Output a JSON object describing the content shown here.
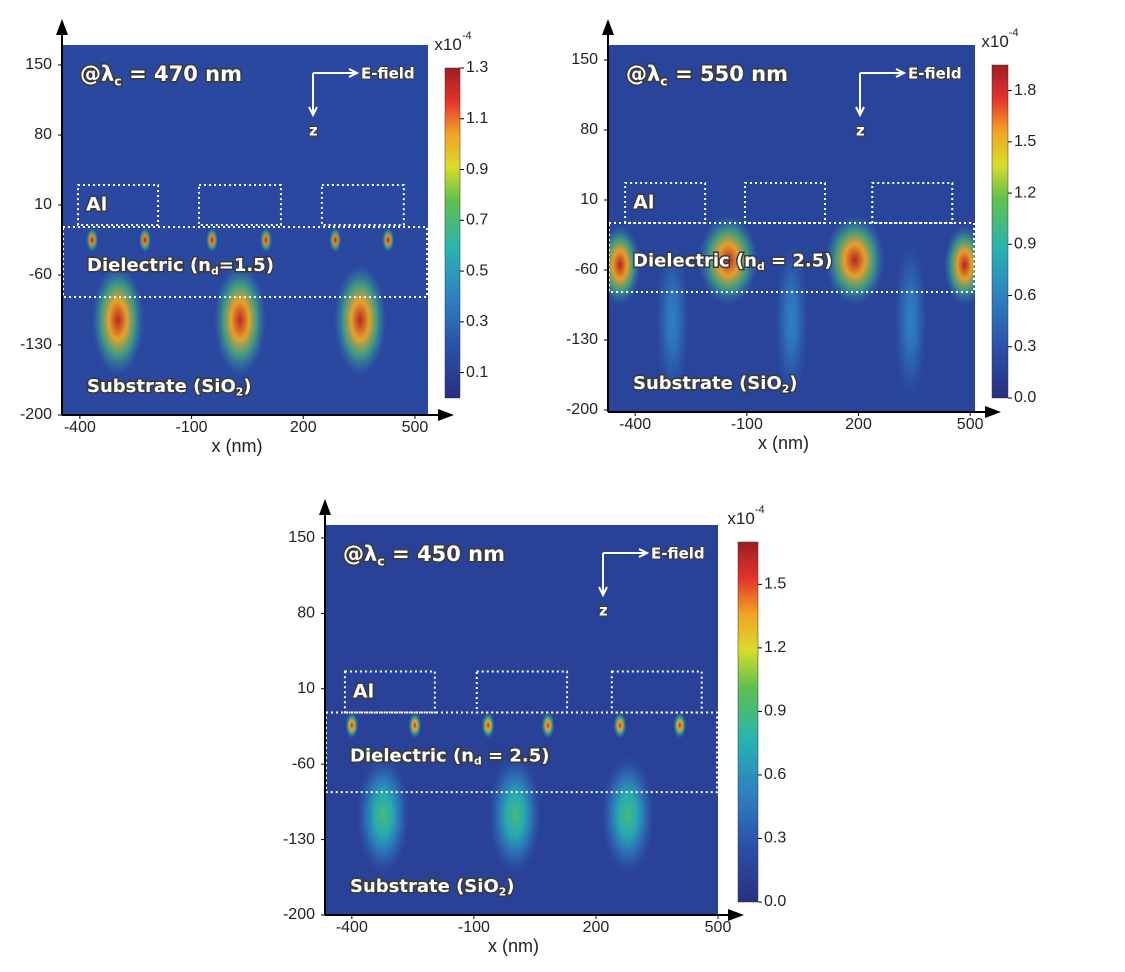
{
  "chart_data": [
    {
      "type": "heatmap",
      "title": {
        "text": "@λ",
        "sub": "c",
        "tail": " = 470 nm"
      },
      "xlabel": "x (nm)",
      "field_label": "E-field",
      "z_label": "z",
      "metal_label": "Al",
      "dielectric_label": {
        "text": "Dielectric (n",
        "sub": "d",
        "tail": "=1.5)"
      },
      "substrate_label": {
        "text": "Substrate (SiO",
        "sub": "2",
        "tail": ")"
      },
      "xlim": [
        -448,
        535
      ],
      "ylim": [
        -200,
        170
      ],
      "xticks": [
        -400,
        -100,
        200,
        500
      ],
      "yticks": [
        150,
        80,
        10,
        -60,
        -130,
        -200
      ],
      "al_boxes": [
        [
          -405,
          -190
        ],
        [
          -80,
          140
        ],
        [
          250,
          470
        ]
      ],
      "al_z": [
        30,
        -10
      ],
      "dielectric_z": [
        -12,
        -82
      ],
      "background": 0.15,
      "spots": [
        {
          "x": -367,
          "y": -25,
          "value": 1.3,
          "rx": 16,
          "ry": 12
        },
        {
          "x": -225,
          "y": -25,
          "value": 1.3,
          "rx": 16,
          "ry": 12
        },
        {
          "x": -45,
          "y": -25,
          "value": 1.3,
          "rx": 16,
          "ry": 12
        },
        {
          "x": 100,
          "y": -25,
          "value": 1.3,
          "rx": 16,
          "ry": 12
        },
        {
          "x": 286,
          "y": -25,
          "value": 1.3,
          "rx": 16,
          "ry": 12
        },
        {
          "x": 428,
          "y": -25,
          "value": 1.3,
          "rx": 16,
          "ry": 12
        },
        {
          "x": -298,
          "y": -105,
          "value": 1.25,
          "rx": 70,
          "ry": 55
        },
        {
          "x": 30,
          "y": -105,
          "value": 1.25,
          "rx": 70,
          "ry": 55
        },
        {
          "x": 353,
          "y": -105,
          "value": 1.25,
          "rx": 70,
          "ry": 55
        }
      ],
      "colorbar_unit": {
        "base": "x10",
        "exponent": "-4"
      },
      "zlim": [
        0,
        1.3
      ],
      "zticks": [
        0.1,
        0.3,
        0.5,
        0.7,
        0.9,
        1.1,
        1.3
      ]
    },
    {
      "type": "heatmap",
      "title": {
        "text": "@λ",
        "sub": "c",
        "tail": " = 550 nm"
      },
      "xlabel": "x (nm)",
      "field_label": "E-field",
      "z_label": "z",
      "metal_label": "Al",
      "dielectric_label": {
        "text": "Dielectric (n",
        "sub": "d",
        "tail": " = 2.5)"
      },
      "substrate_label": {
        "text": "Substrate (SiO",
        "sub": "2",
        "tail": ")"
      },
      "xlim": [
        -473,
        513
      ],
      "ylim": [
        -202,
        165
      ],
      "xticks": [
        -400,
        -100,
        200,
        500
      ],
      "yticks": [
        150,
        80,
        10,
        -60,
        -130,
        -200
      ],
      "al_boxes": [
        [
          -427,
          -212
        ],
        [
          -105,
          110
        ],
        [
          237,
          452
        ]
      ],
      "al_z": [
        27,
        -13
      ],
      "dielectric_z": [
        -13,
        -82
      ],
      "background": 0.2,
      "spots": [
        {
          "x": -300,
          "y": -110,
          "value": 0.6,
          "rx": 45,
          "ry": 80
        },
        {
          "x": 20,
          "y": -110,
          "value": 0.6,
          "rx": 45,
          "ry": 80
        },
        {
          "x": 340,
          "y": -110,
          "value": 0.6,
          "rx": 45,
          "ry": 80
        },
        {
          "x": -441,
          "y": -55,
          "value": 1.9,
          "rx": 55,
          "ry": 40
        },
        {
          "x": -150,
          "y": -50,
          "value": 1.9,
          "rx": 80,
          "ry": 45
        },
        {
          "x": 190,
          "y": -50,
          "value": 1.9,
          "rx": 80,
          "ry": 45
        },
        {
          "x": 485,
          "y": -55,
          "value": 1.9,
          "rx": 55,
          "ry": 40
        }
      ],
      "colorbar_unit": {
        "base": "x10",
        "exponent": "-4"
      },
      "zlim": [
        0,
        1.95
      ],
      "zticks": [
        {
          "value": 0,
          "label": "0.0"
        },
        0.3,
        0.6,
        0.9,
        1.2,
        1.5,
        1.8
      ]
    },
    {
      "type": "heatmap",
      "title": {
        "text": "@λ",
        "sub": "c",
        "tail": " = 450 nm"
      },
      "xlabel": "x (nm)",
      "field_label": "E-field",
      "z_label": "z",
      "metal_label": "Al",
      "dielectric_label": {
        "text": "Dielectric (n",
        "sub": "d",
        "tail": " = 2.5)"
      },
      "substrate_label": {
        "text": "Substrate (SiO",
        "sub": "2",
        "tail": ")"
      },
      "xlim": [
        -466,
        500
      ],
      "ylim": [
        -200,
        162
      ],
      "xticks": [
        -400,
        -100,
        200,
        500
      ],
      "yticks": [
        150,
        80,
        10,
        -60,
        -130,
        -200
      ],
      "al_boxes": [
        [
          -417,
          -196
        ],
        [
          -93,
          129
        ],
        [
          239,
          460
        ]
      ],
      "al_z": [
        26,
        -12
      ],
      "dielectric_z": [
        -12,
        -86
      ],
      "background": 0.15,
      "spots": [
        {
          "x": -400,
          "y": -24,
          "value": 1.6,
          "rx": 16,
          "ry": 12
        },
        {
          "x": -245,
          "y": -24,
          "value": 1.6,
          "rx": 16,
          "ry": 12
        },
        {
          "x": -65,
          "y": -24,
          "value": 1.6,
          "rx": 16,
          "ry": 12
        },
        {
          "x": 82,
          "y": -24,
          "value": 1.6,
          "rx": 16,
          "ry": 12
        },
        {
          "x": 259,
          "y": -24,
          "value": 1.6,
          "rx": 16,
          "ry": 12
        },
        {
          "x": 406,
          "y": -24,
          "value": 1.6,
          "rx": 16,
          "ry": 12
        },
        {
          "x": -323,
          "y": -107,
          "value": 0.9,
          "rx": 65,
          "ry": 55
        },
        {
          "x": 1,
          "y": -107,
          "value": 0.9,
          "rx": 65,
          "ry": 55
        },
        {
          "x": 278,
          "y": -107,
          "value": 0.9,
          "rx": 65,
          "ry": 55
        }
      ],
      "colorbar_unit": {
        "base": "x10",
        "exponent": "-4"
      },
      "zlim": [
        0,
        1.7
      ],
      "zticks": [
        {
          "value": 0,
          "label": "0.0"
        },
        0.3,
        0.6,
        0.9,
        1.2,
        1.5
      ]
    }
  ]
}
